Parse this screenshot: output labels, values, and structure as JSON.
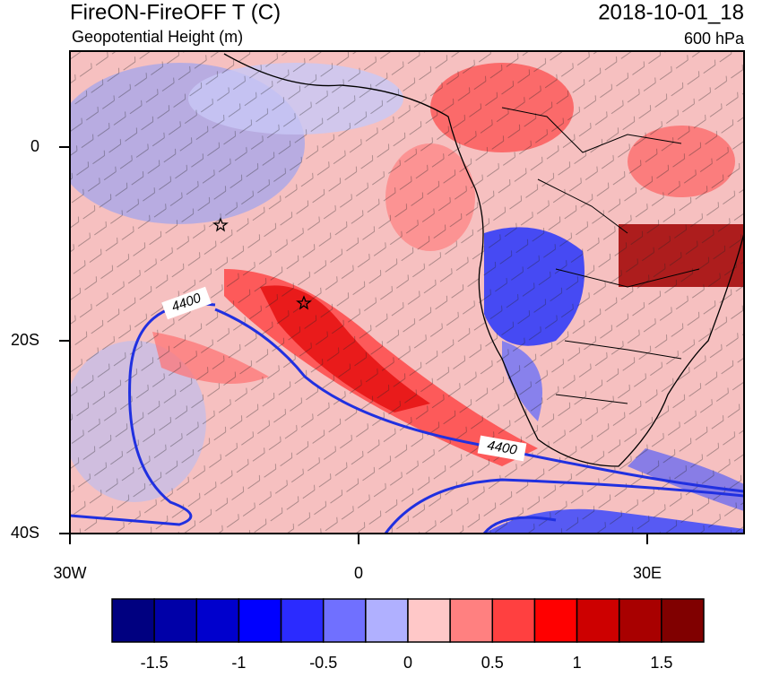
{
  "map": {
    "title": "FireON-FireOFF T (C)",
    "subtitle": "Geopotential Height (m)",
    "date": "2018-10-01_18",
    "level": "600 hPa",
    "lat_labels": [
      "0",
      "20S",
      "40S"
    ],
    "lon_labels": [
      "30W",
      "0",
      "30E"
    ],
    "contour_labels": [
      "4400",
      "4400"
    ],
    "colorbar": {
      "colors": [
        "#000080",
        "#0000a8",
        "#0000cd",
        "#0000ff",
        "#2b2bff",
        "#7070ff",
        "#b0b0ff",
        "#ffc8c8",
        "#ff8080",
        "#ff4040",
        "#ff0000",
        "#cd0000",
        "#a80000",
        "#800000"
      ],
      "labels": [
        "-1.5",
        "-1",
        "-0.5",
        "0",
        "0.5",
        "1",
        "1.5"
      ]
    }
  }
}
